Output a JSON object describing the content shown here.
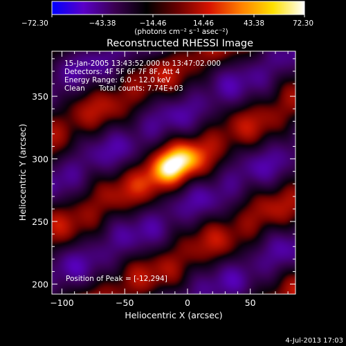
{
  "chart_data": {
    "type": "heatmap",
    "title": "Reconstructed RHESSI Image",
    "xlabel": "Heliocentric X (arcsec)",
    "ylabel": "Heliocentric Y (arcsec)",
    "xlim": [
      -108,
      86
    ],
    "ylim": [
      192,
      386
    ],
    "x_ticks": [
      -100,
      -50,
      0,
      50
    ],
    "x_tick_labels": [
      "−100",
      "−50",
      "0",
      "50"
    ],
    "y_ticks": [
      200,
      250,
      300,
      350
    ],
    "y_tick_labels": [
      "200",
      "250",
      "300",
      "350"
    ],
    "colorbar": {
      "range": [
        -72.3,
        72.3
      ],
      "tick_labels": [
        "−72.30",
        "−43.38",
        "−14.46",
        "14.46",
        "43.38",
        "72.30"
      ],
      "unit_label": "(photons cm⁻² s⁻¹ asec⁻²)",
      "colors": [
        "#0000ff",
        "#5a00c8",
        "#3a0050",
        "#000000",
        "#6a0000",
        "#d81400",
        "#ff8000",
        "#ffe000",
        "#ffffff"
      ]
    },
    "peak_value": 72.3,
    "peak_position": [
      -12,
      294
    ],
    "stripe_angle_deg": 28,
    "annotations": {
      "time": "15-Jan-2005 13:43:52.000 to 13:47:02.000",
      "detectors": "Detectors: 4F 5F 6F 7F 8F, Att 4",
      "energy": "Energy Range: 6.0 - 12.0 keV",
      "clean": "Clean      Total counts: 7.74E+03",
      "peak": "Position of Peak = [-12,294]"
    }
  },
  "timestamp": "4-Jul-2013 17:03"
}
